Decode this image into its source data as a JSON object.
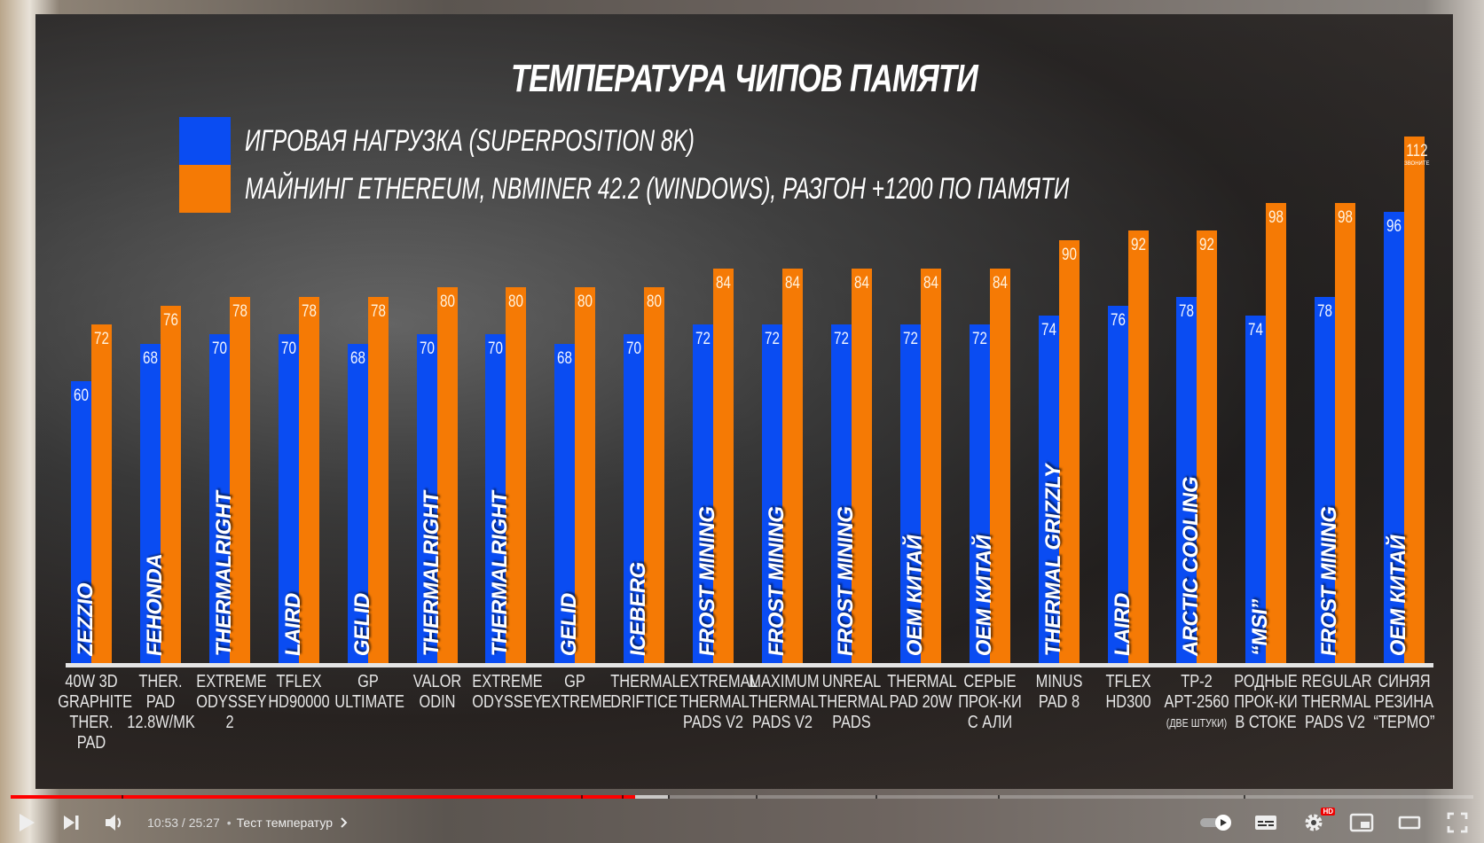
{
  "chart_data": {
    "type": "bar",
    "title": "ТЕМПЕРАТУРА ЧИПОВ ПАМЯТИ",
    "xlabel": "",
    "ylabel": "",
    "ylim": [
      0,
      120
    ],
    "grid": false,
    "legend_position": "top-left",
    "categories": [
      "40W 3D GRAPHITE THER. PAD",
      "THER. PAD 12.8W/MK",
      "EXTREME ODYSSEY 2",
      "TFLEX HD90000",
      "GP ULTIMATE",
      "VALOR ODIN",
      "EXTREME ODYSSEY",
      "GP EXTREME",
      "THERMAL DRIFTICE",
      "EXTREMAL THERMAL PADS V2",
      "MAXIMUM THERMAL PADS V2",
      "UNREAL THERMAL PADS",
      "THERMAL PAD 20W",
      "СЕРЫЕ ПРОК-КИ С АЛИ",
      "MINUS PAD 8",
      "TFLEX HD300",
      "TP-2 APT-2560 (ДВЕ ШТУКИ)",
      "РОДНЫЕ ПРОК-КИ В СТОКЕ",
      "REGULAR THERMAL PADS V2",
      "СИНЯЯ РЕЗИНА “ТЕРМО”"
    ],
    "brands": [
      "ZEZZIO",
      "FEHONDA",
      "THERMALRIGHT",
      "LAIRD",
      "GELID",
      "THERMALRIGHT",
      "THERMALRIGHT",
      "GELID",
      "ICEBERG",
      "FROST MINING",
      "FROST MINING",
      "FROST MINING",
      "OEM КИТАЙ",
      "OEM КИТАЙ",
      "THERMAL GRIZZLY",
      "LAIRD",
      "ARCTIC COOLING",
      "“MSI”",
      "FROST MINING",
      "OEM КИТАЙ"
    ],
    "series": [
      {
        "name": "ИГРОВАЯ НАГРУЗКА (SUPERPOSITION 8K)",
        "color": "#0a4cf2",
        "values": [
          60,
          68,
          70,
          70,
          68,
          70,
          70,
          68,
          70,
          72,
          72,
          72,
          72,
          72,
          74,
          76,
          78,
          74,
          78,
          96
        ]
      },
      {
        "name": "МАЙНИНГ ETHEREUM, NBMINER 42.2 (WINDOWS), РАЗГОН +1200 ПО ПАМЯТИ",
        "color": "#f57a05",
        "values": [
          72,
          76,
          78,
          78,
          78,
          80,
          80,
          80,
          80,
          84,
          84,
          84,
          84,
          84,
          90,
          92,
          92,
          98,
          98,
          112
        ]
      }
    ],
    "annotations": [
      {
        "category_index": 19,
        "series": 1,
        "text": "ЗВОНИТЕ"
      }
    ]
  },
  "legend": {
    "items": [
      {
        "label": "ИГРОВАЯ НАГРУЗКА (SUPERPOSITION 8K)",
        "color": "#0a4cf2"
      },
      {
        "label": "МАЙНИНГ ETHEREUM, NBMINER 42.2 (WINDOWS), РАЗГОН +1200 ПО ПАМЯТИ",
        "color": "#f57a05"
      }
    ]
  },
  "player": {
    "time_current": "10:53",
    "time_total": "25:27",
    "time_display": "10:53 / 25:27",
    "chapter_title": "Тест температур",
    "hd_badge": "HD",
    "progress_played_color": "#ff0000",
    "icons": [
      "play-icon",
      "next-icon",
      "volume-icon",
      "autoplay-toggle-icon",
      "subtitles-icon",
      "settings-icon",
      "miniplayer-icon",
      "theater-mode-icon",
      "fullscreen-icon"
    ]
  }
}
